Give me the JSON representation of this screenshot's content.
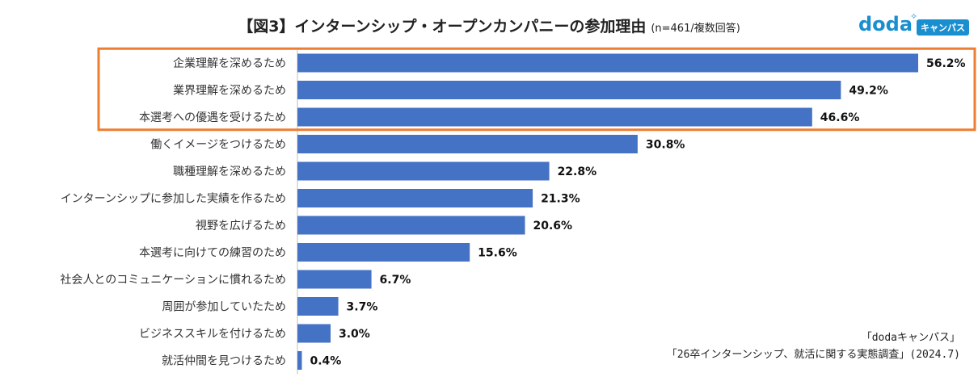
{
  "title": {
    "main": "【図3】インターンシップ・オープンカンパニーの参加理由",
    "sub": "(n=461/複数回答)"
  },
  "logo": {
    "brand": "doda",
    "badge": "キャンパス"
  },
  "source": {
    "line1": "「dodaキャンパス」",
    "line2": "「26卒インターンシップ、就活に関する実態調査」(2024.7)"
  },
  "colors": {
    "bar": "#4472c4",
    "highlight": "#ed7d31",
    "axis": "#bfbfbf"
  },
  "chart_data": {
    "type": "bar",
    "orientation": "horizontal",
    "title": "【図3】インターンシップ・オープンカンパニーの参加理由",
    "xlabel": "",
    "ylabel": "",
    "xlim": [
      0,
      56.2
    ],
    "unit": "%",
    "categories": [
      "企業理解を深めるため",
      "業界理解を深めるため",
      "本選考への優遇を受けるため",
      "働くイメージをつけるため",
      "職種理解を深めるため",
      "インターンシップに参加した実績を作るため",
      "視野を広げるため",
      "本選考に向けての練習のため",
      "社会人とのコミュニケーションに慣れるため",
      "周囲が参加していたため",
      "ビジネススキルを付けるため",
      "就活仲間を見つけるため"
    ],
    "values": [
      56.2,
      49.2,
      46.6,
      30.8,
      22.8,
      21.3,
      20.6,
      15.6,
      6.7,
      3.7,
      3.0,
      0.4
    ],
    "data_labels": [
      "56.2%",
      "49.2%",
      "46.6%",
      "30.8%",
      "22.8%",
      "21.3%",
      "20.6%",
      "15.6%",
      "6.7%",
      "3.7%",
      "3.0%",
      "0.4%"
    ],
    "highlighted_count": 3,
    "legend": "none",
    "grid": false
  }
}
